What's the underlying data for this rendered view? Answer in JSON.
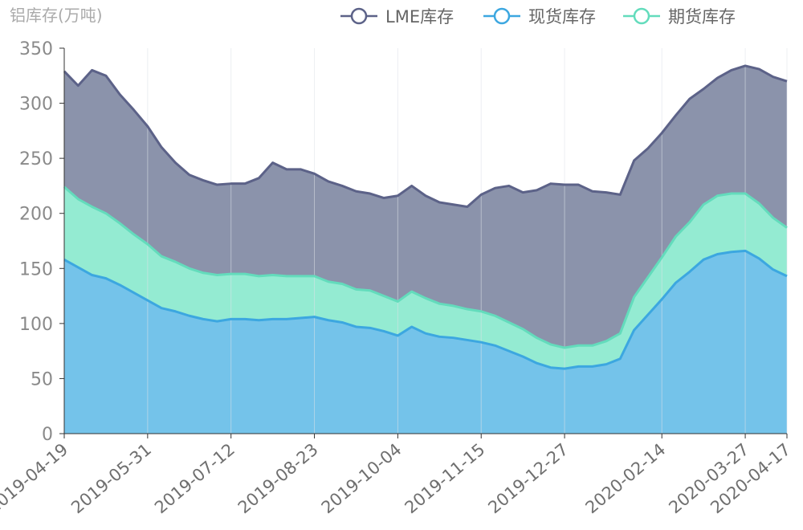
{
  "chart_data": {
    "type": "area",
    "title": "",
    "ylabel": "铝库存(万吨)",
    "xlabel": "",
    "ylim": [
      0,
      350
    ],
    "yticks": [
      0,
      50,
      100,
      150,
      200,
      250,
      300,
      350
    ],
    "stacked": true,
    "grid": "vertical",
    "legend_position": "top-right",
    "x": [
      "2019-04-19",
      "2019-04-26",
      "2019-05-03",
      "2019-05-10",
      "2019-05-17",
      "2019-05-24",
      "2019-05-31",
      "2019-06-07",
      "2019-06-14",
      "2019-06-21",
      "2019-06-28",
      "2019-07-05",
      "2019-07-12",
      "2019-07-19",
      "2019-07-26",
      "2019-08-02",
      "2019-08-09",
      "2019-08-16",
      "2019-08-23",
      "2019-08-30",
      "2019-09-06",
      "2019-09-13",
      "2019-09-20",
      "2019-09-27",
      "2019-10-04",
      "2019-10-11",
      "2019-10-18",
      "2019-10-25",
      "2019-11-01",
      "2019-11-08",
      "2019-11-15",
      "2019-11-22",
      "2019-11-29",
      "2019-12-06",
      "2019-12-13",
      "2019-12-20",
      "2019-12-27",
      "2020-01-03",
      "2020-01-10",
      "2020-01-17",
      "2020-01-24",
      "2020-01-31",
      "2020-02-07",
      "2020-02-14",
      "2020-02-21",
      "2020-02-28",
      "2020-03-06",
      "2020-03-13",
      "2020-03-20",
      "2020-03-27",
      "2020-04-03",
      "2020-04-10",
      "2020-04-17"
    ],
    "x_tick_labels": [
      "2019-04-19",
      "2019-05-31",
      "2019-07-12",
      "2019-08-23",
      "2019-10-04",
      "2019-11-15",
      "2019-12-27",
      "2020-02-14",
      "2020-03-27",
      "2020-04-17"
    ],
    "series": [
      {
        "name": "现货库存",
        "values": [
          158,
          151,
          144,
          141,
          135,
          128,
          121,
          114,
          111,
          107,
          104,
          102,
          104,
          104,
          103,
          104,
          104,
          105,
          106,
          103,
          101,
          97,
          96,
          93,
          89,
          97,
          91,
          88,
          87,
          85,
          83,
          80,
          75,
          70,
          64,
          60,
          59,
          61,
          61,
          63,
          68,
          94,
          108,
          122,
          137,
          147,
          158,
          163,
          165,
          166,
          159,
          149,
          143
        ]
      },
      {
        "name": "期货库存",
        "values": [
          66,
          62,
          62,
          59,
          56,
          53,
          51,
          47,
          45,
          43,
          42,
          42,
          41,
          41,
          40,
          40,
          39,
          38,
          37,
          35,
          35,
          34,
          34,
          32,
          31,
          32,
          32,
          30,
          29,
          28,
          28,
          27,
          26,
          25,
          23,
          21,
          19,
          19,
          19,
          21,
          23,
          30,
          34,
          38,
          42,
          45,
          50,
          53,
          53,
          52,
          50,
          47,
          44
        ]
      },
      {
        "name": "LME库存",
        "values": [
          105,
          103,
          124,
          125,
          117,
          113,
          107,
          99,
          90,
          85,
          84,
          82,
          82,
          82,
          89,
          102,
          97,
          97,
          93,
          91,
          89,
          89,
          88,
          89,
          96,
          96,
          93,
          92,
          92,
          93,
          106,
          116,
          124,
          124,
          134,
          146,
          148,
          146,
          140,
          135,
          126,
          124,
          117,
          113,
          110,
          112,
          105,
          107,
          112,
          116,
          122,
          128,
          133
        ]
      }
    ],
    "colors": {
      "现货库存": {
        "fill": "#74c3ea",
        "line": "#3ca7e0"
      },
      "期货库存": {
        "fill": "#94ebd2",
        "line": "#63dcbc"
      },
      "LME库存": {
        "fill": "#8b93ab",
        "line": "#5c6288"
      }
    }
  },
  "legend": [
    {
      "label": "LME库存",
      "color": "#5c6288"
    },
    {
      "label": "现货库存",
      "color": "#3ca7e0"
    },
    {
      "label": "期货库存",
      "color": "#63dcbc"
    }
  ]
}
